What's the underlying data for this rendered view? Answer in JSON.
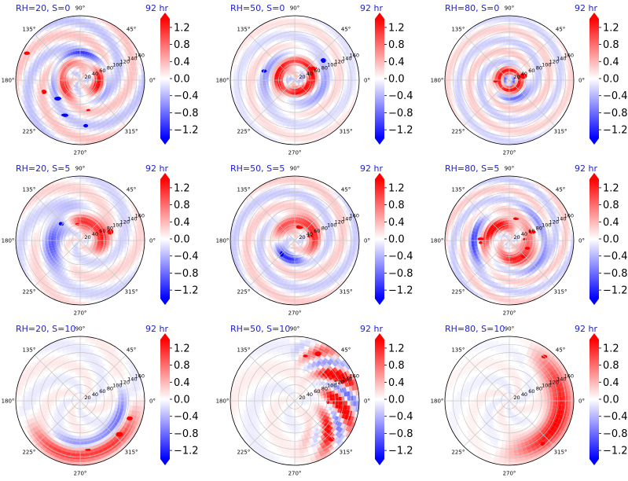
{
  "figure": {
    "colors": {
      "title_text": "#1f1fd0",
      "colormap": "bwr",
      "colormap_low": "#0000ff",
      "colormap_mid": "#ffffff",
      "colormap_high": "#ff0000",
      "grid": "#c8c8c8"
    }
  },
  "chart_data": [
    {
      "type": "heatmap",
      "projection": "polar",
      "title_left": "RH=20, S=0",
      "title_right": "92 hr",
      "angle_ticks": [
        "0°",
        "45°",
        "90°",
        "135°",
        "180°",
        "225°",
        "270°",
        "315°"
      ],
      "radial_ticks": [
        "20",
        "40",
        "60",
        "80",
        "100",
        "120",
        "140",
        "160"
      ],
      "colorbar": {
        "ticks": [
          "1.2",
          "0.8",
          "0.4",
          "0.0",
          "−0.4",
          "−0.8",
          "−1.2"
        ],
        "range": [
          -1.4,
          1.4
        ],
        "extend": "both"
      },
      "field_pattern": "spiral bands with strong red core ring and blue inner band"
    },
    {
      "type": "heatmap",
      "projection": "polar",
      "title_left": "RH=50, S=0",
      "title_right": "92 hr",
      "angle_ticks": [
        "0°",
        "45°",
        "90°",
        "135°",
        "180°",
        "225°",
        "270°",
        "315°"
      ],
      "radial_ticks": [
        "20",
        "40",
        "60",
        "80",
        "100",
        "120",
        "140",
        "160"
      ],
      "colorbar": {
        "ticks": [
          "1.2",
          "0.8",
          "0.4",
          "0.0",
          "−0.4",
          "−0.8",
          "−1.2"
        ],
        "range": [
          -1.4,
          1.4
        ],
        "extend": "both"
      },
      "field_pattern": "tight red spiral eyewall with outer convective cells"
    },
    {
      "type": "heatmap",
      "projection": "polar",
      "title_left": "RH=80, S=0",
      "title_right": "92 hr",
      "angle_ticks": [
        "0°",
        "45°",
        "90°",
        "135°",
        "180°",
        "225°",
        "270°",
        "315°"
      ],
      "radial_ticks": [
        "20",
        "40",
        "60",
        "80",
        "100",
        "120",
        "140",
        "160"
      ],
      "colorbar": {
        "ticks": [
          "1.2",
          "0.8",
          "0.4",
          "0.0",
          "−0.4",
          "−0.8",
          "−1.2"
        ],
        "range": [
          -1.4,
          1.4
        ],
        "extend": "both"
      },
      "field_pattern": "compact intense red core ring with concentric outer bands"
    },
    {
      "type": "heatmap",
      "projection": "polar",
      "title_left": "RH=20, S=5",
      "title_right": "92 hr",
      "angle_ticks": [
        "0°",
        "45°",
        "90°",
        "135°",
        "180°",
        "225°",
        "270°",
        "315°"
      ],
      "radial_ticks": [
        "20",
        "40",
        "60",
        "80",
        "100",
        "120",
        "140",
        "160"
      ],
      "colorbar": {
        "ticks": [
          "1.2",
          "0.8",
          "0.4",
          "0.0",
          "−0.4",
          "−0.8",
          "−1.2"
        ],
        "range": [
          -1.4,
          1.4
        ],
        "extend": "both"
      },
      "field_pattern": "asymmetric red convection concentrated north-east, blue to west"
    },
    {
      "type": "heatmap",
      "projection": "polar",
      "title_left": "RH=50, S=5",
      "title_right": "92 hr",
      "angle_ticks": [
        "0°",
        "45°",
        "90°",
        "135°",
        "180°",
        "225°",
        "270°",
        "315°"
      ],
      "radial_ticks": [
        "20",
        "40",
        "60",
        "80",
        "100",
        "120",
        "140",
        "160"
      ],
      "colorbar": {
        "ticks": [
          "1.2",
          "0.8",
          "0.4",
          "0.0",
          "−0.4",
          "−0.8",
          "−1.2"
        ],
        "range": [
          -1.4,
          1.4
        ],
        "extend": "both"
      },
      "field_pattern": "red spiral core with blue band south-west and scattered cells"
    },
    {
      "type": "heatmap",
      "projection": "polar",
      "title_left": "RH=80, S=5",
      "title_right": "92 hr",
      "angle_ticks": [
        "0°",
        "45°",
        "90°",
        "135°",
        "180°",
        "225°",
        "270°",
        "315°"
      ],
      "radial_ticks": [
        "20",
        "40",
        "60",
        "80",
        "100",
        "120",
        "140",
        "160"
      ],
      "colorbar": {
        "ticks": [
          "1.2",
          "0.8",
          "0.4",
          "0.0",
          "−0.4",
          "−0.8",
          "−1.2"
        ],
        "range": [
          -1.4,
          1.4
        ],
        "extend": "both"
      },
      "field_pattern": "large red spiral with blue bands and many outer cells"
    },
    {
      "type": "heatmap",
      "projection": "polar",
      "title_left": "RH=20, S=10",
      "title_right": "92 hr",
      "angle_ticks": [
        "0°",
        "45°",
        "90°",
        "135°",
        "180°",
        "225°",
        "270°",
        "315°"
      ],
      "radial_ticks": [
        "20",
        "40",
        "60",
        "80",
        "100",
        "120",
        "140",
        "160"
      ],
      "colorbar": {
        "ticks": [
          "1.2",
          "0.8",
          "0.4",
          "0.0",
          "−0.4",
          "−0.8",
          "−1.2"
        ],
        "range": [
          -1.4,
          1.4
        ],
        "extend": "both"
      },
      "field_pattern": "weak field, convection displaced to south and south-east edge"
    },
    {
      "type": "heatmap",
      "projection": "polar",
      "title_left": "RH=50, S=10",
      "title_right": "92 hr",
      "angle_ticks": [
        "0°",
        "45°",
        "90°",
        "135°",
        "180°",
        "225°",
        "270°",
        "315°"
      ],
      "radial_ticks": [
        "20",
        "40",
        "60",
        "80",
        "100",
        "120",
        "140",
        "160"
      ],
      "colorbar": {
        "ticks": [
          "1.2",
          "0.8",
          "0.4",
          "0.0",
          "−0.4",
          "−0.8",
          "−1.2"
        ],
        "range": [
          -1.4,
          1.4
        ],
        "extend": "both"
      },
      "field_pattern": "strong red and blue convection cluster on east side"
    },
    {
      "type": "heatmap",
      "projection": "polar",
      "title_left": "RH=80, S=10",
      "title_right": "92 hr",
      "angle_ticks": [
        "0°",
        "45°",
        "90°",
        "135°",
        "180°",
        "225°",
        "270°",
        "315°"
      ],
      "radial_ticks": [
        "20",
        "40",
        "60",
        "80",
        "100",
        "120",
        "140",
        "160"
      ],
      "colorbar": {
        "ticks": [
          "1.2",
          "0.8",
          "0.4",
          "0.0",
          "−0.4",
          "−0.8",
          "−1.2"
        ],
        "range": [
          -1.4,
          1.4
        ],
        "extend": "both"
      },
      "field_pattern": "red convection on east-south-east edge, weak elsewhere"
    }
  ]
}
